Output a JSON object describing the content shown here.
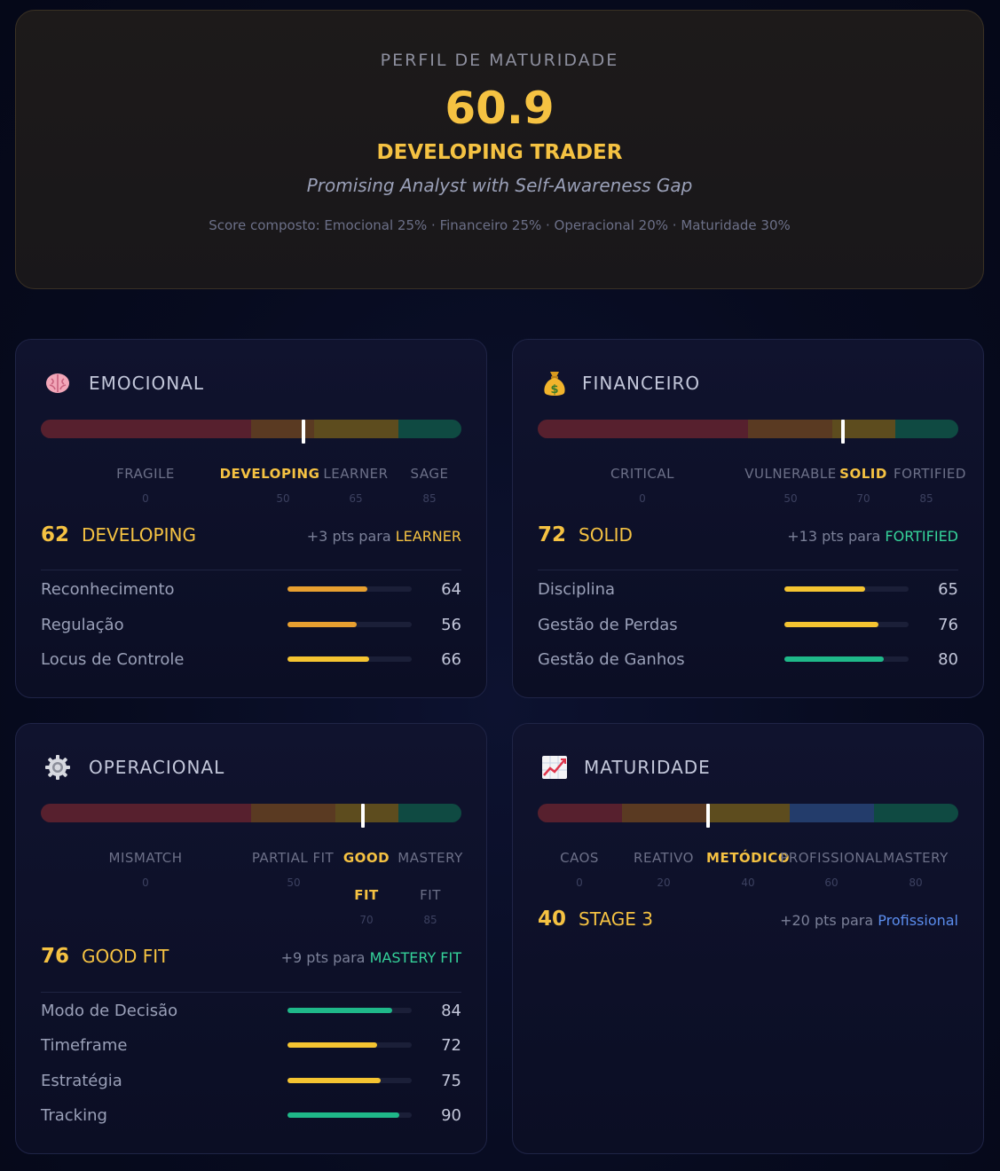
{
  "hero": {
    "label": "PERFIL DE MATURIDADE",
    "score": "60.9",
    "level": "DEVELOPING TRADER",
    "subtitle": "Promising Analyst with Self-Awareness Gap",
    "note": "Score composto: Emocional 25% · Financeiro 25% · Operacional 20% · Maturidade 30%"
  },
  "colors": {
    "gold": "#f5c242",
    "orange": "#e8a030",
    "yellow": "#f5c431",
    "green": "#1fb889",
    "blue": "#5b8dee",
    "seg_red": "#57202e",
    "seg_brown": "#5a3a22",
    "seg_olive": "#5d4c1e",
    "seg_blue": "#233c6b",
    "seg_teal": "#0f4a42"
  },
  "cards": {
    "emocional": {
      "icon": "brain-icon",
      "title": "EMOCIONAL",
      "marker_percent": 62,
      "levels": [
        {
          "name": "FRAGILE",
          "min": "0"
        },
        {
          "name": "DEVELOPING",
          "min": "50"
        },
        {
          "name": "LEARNER",
          "min": "65"
        },
        {
          "name": "SAGE",
          "min": "85"
        }
      ],
      "score": "62",
      "level": "DEVELOPING",
      "next_prefix": "+3 pts para ",
      "next_target": "LEARNER",
      "rows": [
        {
          "label": "Reconhecimento",
          "value": "64"
        },
        {
          "label": "Regulação",
          "value": "56"
        },
        {
          "label": "Locus de Controle",
          "value": "66"
        }
      ]
    },
    "financeiro": {
      "icon": "money-bag-icon",
      "title": "FINANCEIRO",
      "marker_percent": 72,
      "levels": [
        {
          "name": "CRITICAL",
          "min": "0"
        },
        {
          "name": "VULNERABLE",
          "min": "50"
        },
        {
          "name": "SOLID",
          "min": "70"
        },
        {
          "name": "FORTIFIED",
          "min": "85"
        }
      ],
      "score": "72",
      "level": "SOLID",
      "next_prefix": "+13 pts para ",
      "next_target": "FORTIFIED",
      "rows": [
        {
          "label": "Disciplina",
          "value": "65"
        },
        {
          "label": "Gestão de Perdas",
          "value": "76"
        },
        {
          "label": "Gestão de Ganhos",
          "value": "80"
        }
      ]
    },
    "operacional": {
      "icon": "gear-icon",
      "title": "OPERACIONAL",
      "marker_percent": 76,
      "levels": [
        {
          "name": "MISMATCH",
          "min": "0"
        },
        {
          "name": "PARTIAL FIT",
          "min": "50"
        },
        {
          "name_1": "GOOD",
          "name_2": "FIT",
          "min": "70"
        },
        {
          "name_1": "MASTERY",
          "name_2": "FIT",
          "min": "85"
        }
      ],
      "score": "76",
      "level": "GOOD FIT",
      "next_prefix": "+9 pts para ",
      "next_target": "MASTERY FIT",
      "rows": [
        {
          "label": "Modo de Decisão",
          "value": "84"
        },
        {
          "label": "Timeframe",
          "value": "72"
        },
        {
          "label": "Estratégia",
          "value": "75"
        },
        {
          "label": "Tracking",
          "value": "90"
        }
      ]
    },
    "maturidade": {
      "icon": "chart-increasing-icon",
      "title": "MATURIDADE",
      "marker_percent": 40,
      "levels": [
        {
          "name": "CAOS",
          "min": "0"
        },
        {
          "name": "REATIVO",
          "min": "20"
        },
        {
          "name": "METÓDICO",
          "min": "40"
        },
        {
          "name": "PROFISSIONAL",
          "min": "60"
        },
        {
          "name": "MASTERY",
          "min": "80"
        }
      ],
      "score": "40",
      "level": "STAGE 3",
      "next_prefix": "+20 pts para ",
      "next_target": "Profissional"
    }
  }
}
